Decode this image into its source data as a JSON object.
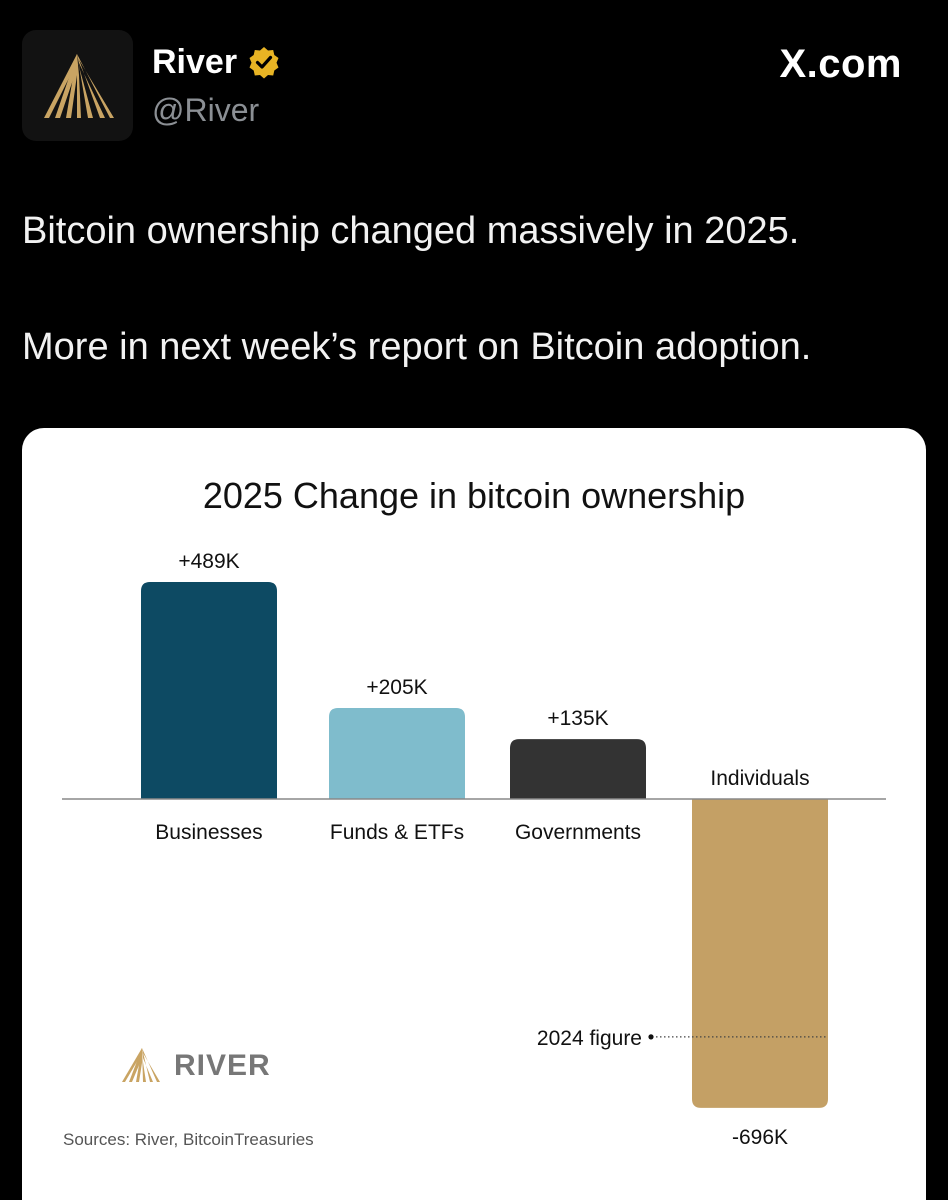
{
  "tweet": {
    "author_name": "River",
    "author_handle": "@River",
    "site_label": "X.com",
    "text_lines": [
      "Bitcoin ownership changed massively in 2025.",
      "More in next week’s report on Bitcoin adoption."
    ]
  },
  "colors": {
    "background": "#000000",
    "verified_badge": "#e8b424",
    "avatar_gold": "#c9a463"
  },
  "icons": {
    "avatar": "river-logo-icon",
    "verified": "verified-badge-icon"
  },
  "chart_data": {
    "type": "bar",
    "title": "2025 Change in bitcoin ownership",
    "categories": [
      "Businesses",
      "Funds & ETFs",
      "Governments",
      "Individuals"
    ],
    "values": [
      489,
      205,
      135,
      -696
    ],
    "unit": "K",
    "value_labels": [
      "+489K",
      "+205K",
      "+135K",
      "-696K"
    ],
    "colors": [
      "#0d4a63",
      "#7fbccc",
      "#333333",
      "#c4a065"
    ],
    "reference_line": {
      "label": "2024 figure",
      "value": -536
    },
    "ylim": [
      -696,
      489
    ],
    "brand": "RIVER",
    "source": "Sources: River, BitcoinTreasuries"
  }
}
